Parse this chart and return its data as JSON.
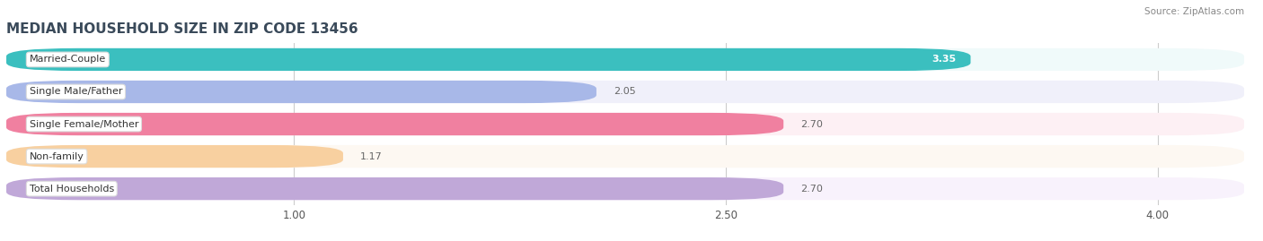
{
  "title": "MEDIAN HOUSEHOLD SIZE IN ZIP CODE 13456",
  "source": "Source: ZipAtlas.com",
  "categories": [
    "Married-Couple",
    "Single Male/Father",
    "Single Female/Mother",
    "Non-family",
    "Total Households"
  ],
  "values": [
    3.35,
    2.05,
    2.7,
    1.17,
    2.7
  ],
  "bar_colors": [
    "#3bbfbf",
    "#a8b8e8",
    "#f080a0",
    "#f8d0a0",
    "#c0a8d8"
  ],
  "bar_bg_colors": [
    "#eeeeee",
    "#eeeeee",
    "#eeeeee",
    "#eeeeee",
    "#eeeeee"
  ],
  "row_bg_colors": [
    "#f0fafa",
    "#f0f0fa",
    "#fdf0f4",
    "#fdf8f2",
    "#f8f2fc"
  ],
  "xlim": [
    0,
    4.3
  ],
  "xmin": 0,
  "xticks": [
    1.0,
    2.5,
    4.0
  ],
  "figsize": [
    14.06,
    2.69
  ],
  "dpi": 100
}
